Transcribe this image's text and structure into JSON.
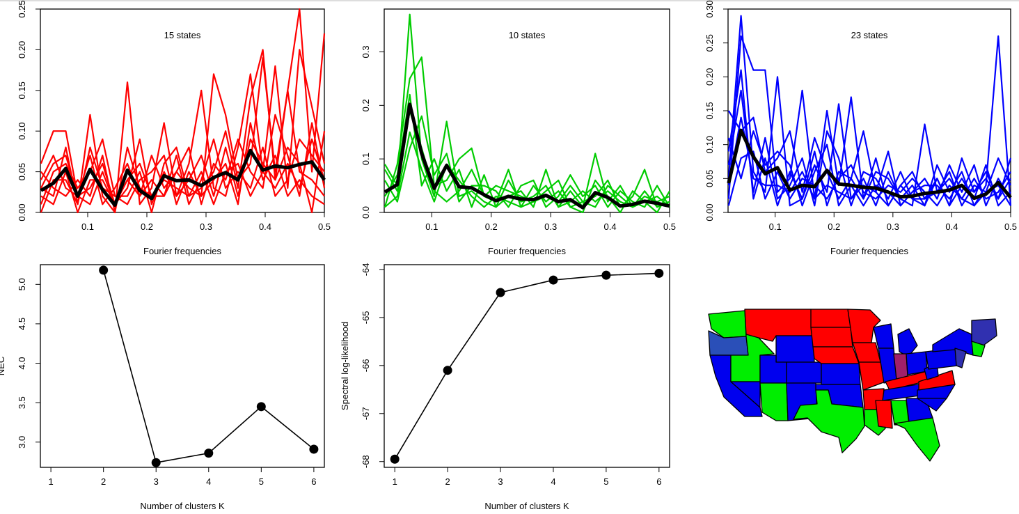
{
  "chart_data": [
    {
      "type": "line",
      "panel": "top-left",
      "annotation": "15 states",
      "xlabel": "Fourier frequencies",
      "ylabel": "",
      "xlim": [
        0.02,
        0.5
      ],
      "ylim": [
        0.0,
        0.25
      ],
      "xticks": [
        "0.1",
        "0.2",
        "0.3",
        "0.4",
        "0.5"
      ],
      "yticks": [
        "0.00",
        "0.05",
        "0.10",
        "0.15",
        "0.20",
        "0.25"
      ],
      "line_color": "#ff0000",
      "mean_color": "#000000",
      "x": [
        0.021,
        0.042,
        0.063,
        0.083,
        0.104,
        0.125,
        0.146,
        0.167,
        0.188,
        0.208,
        0.229,
        0.25,
        0.271,
        0.292,
        0.313,
        0.333,
        0.354,
        0.375,
        0.396,
        0.417,
        0.438,
        0.458,
        0.479,
        0.5
      ],
      "mean": [
        0.027,
        0.036,
        0.054,
        0.02,
        0.053,
        0.028,
        0.009,
        0.052,
        0.027,
        0.017,
        0.045,
        0.039,
        0.04,
        0.033,
        0.043,
        0.049,
        0.04,
        0.076,
        0.052,
        0.057,
        0.055,
        0.059,
        0.062,
        0.04
      ],
      "series": [
        {
          "values": [
            0.06,
            0.1,
            0.1,
            0.02,
            0.03,
            0.06,
            0.01,
            0.04,
            0.02,
            0.04,
            0.02,
            0.05,
            0.03,
            0.02,
            0.17,
            0.12,
            0.04,
            0.06,
            0.19,
            0.05,
            0.15,
            0.25,
            0.05,
            0.22
          ]
        },
        {
          "values": [
            0.03,
            0.02,
            0.08,
            0.01,
            0.12,
            0.02,
            0.0,
            0.16,
            0.01,
            0.03,
            0.11,
            0.02,
            0.06,
            0.15,
            0.03,
            0.02,
            0.08,
            0.17,
            0.05,
            0.18,
            0.03,
            0.2,
            0.13,
            0.06
          ]
        },
        {
          "values": [
            0.01,
            0.05,
            0.06,
            0.03,
            0.05,
            0.09,
            0.02,
            0.02,
            0.05,
            0.0,
            0.06,
            0.08,
            0.02,
            0.03,
            0.05,
            0.1,
            0.03,
            0.14,
            0.2,
            0.04,
            0.08,
            0.06,
            0.0,
            0.1
          ]
        },
        {
          "values": [
            0.04,
            0.07,
            0.03,
            0.02,
            0.07,
            0.01,
            0.03,
            0.06,
            0.02,
            0.07,
            0.03,
            0.05,
            0.08,
            0.01,
            0.06,
            0.04,
            0.09,
            0.05,
            0.03,
            0.12,
            0.07,
            0.02,
            0.11,
            0.03
          ]
        },
        {
          "values": [
            0.02,
            0.01,
            0.05,
            0.0,
            0.04,
            0.04,
            0.01,
            0.03,
            0.09,
            0.01,
            0.05,
            0.02,
            0.04,
            0.07,
            0.02,
            0.08,
            0.02,
            0.09,
            0.06,
            0.04,
            0.15,
            0.05,
            0.04,
            0.02
          ]
        },
        {
          "values": [
            0.05,
            0.03,
            0.02,
            0.04,
            0.02,
            0.07,
            0.0,
            0.08,
            0.03,
            0.02,
            0.02,
            0.07,
            0.01,
            0.04,
            0.09,
            0.03,
            0.05,
            0.03,
            0.08,
            0.02,
            0.04,
            0.09,
            0.07,
            0.05
          ]
        },
        {
          "values": [
            0.0,
            0.04,
            0.04,
            0.01,
            0.08,
            0.03,
            0.02,
            0.01,
            0.04,
            0.05,
            0.07,
            0.01,
            0.05,
            0.02,
            0.04,
            0.06,
            0.01,
            0.11,
            0.04,
            0.07,
            0.02,
            0.04,
            0.02,
            0.01
          ]
        },
        {
          "values": [
            0.03,
            0.06,
            0.07,
            0.02,
            0.01,
            0.05,
            0.01,
            0.04,
            0.06,
            0.02,
            0.04,
            0.03,
            0.02,
            0.05,
            0.01,
            0.05,
            0.06,
            0.02,
            0.05,
            0.03,
            0.06,
            0.03,
            0.09,
            0.04
          ]
        }
      ]
    },
    {
      "type": "line",
      "panel": "top-middle",
      "annotation": "10 states",
      "xlabel": "Fourier frequencies",
      "ylabel": "",
      "xlim": [
        0.02,
        0.5
      ],
      "ylim": [
        0.0,
        0.38
      ],
      "xticks": [
        "0.1",
        "0.2",
        "0.3",
        "0.4",
        "0.5"
      ],
      "yticks": [
        "0.0",
        "0.1",
        "0.2",
        "0.3"
      ],
      "line_color": "#00cc00",
      "mean_color": "#000000",
      "x": [
        0.021,
        0.042,
        0.063,
        0.083,
        0.104,
        0.125,
        0.146,
        0.167,
        0.188,
        0.208,
        0.229,
        0.25,
        0.271,
        0.292,
        0.313,
        0.333,
        0.354,
        0.375,
        0.396,
        0.417,
        0.438,
        0.458,
        0.479,
        0.5
      ],
      "mean": [
        0.038,
        0.052,
        0.202,
        0.11,
        0.045,
        0.088,
        0.048,
        0.046,
        0.033,
        0.022,
        0.03,
        0.025,
        0.024,
        0.032,
        0.02,
        0.024,
        0.009,
        0.037,
        0.028,
        0.012,
        0.015,
        0.021,
        0.017,
        0.012
      ],
      "series": [
        {
          "values": [
            0.09,
            0.05,
            0.37,
            0.1,
            0.03,
            0.17,
            0.03,
            0.04,
            0.02,
            0.01,
            0.06,
            0.02,
            0.03,
            0.05,
            0.01,
            0.04,
            0.01,
            0.11,
            0.02,
            0.05,
            0.01,
            0.02,
            0.0,
            0.04
          ]
        },
        {
          "values": [
            0.01,
            0.09,
            0.25,
            0.29,
            0.05,
            0.06,
            0.1,
            0.12,
            0.03,
            0.02,
            0.08,
            0.01,
            0.02,
            0.04,
            0.06,
            0.01,
            0.02,
            0.03,
            0.06,
            0.01,
            0.03,
            0.08,
            0.01,
            0.02
          ]
        },
        {
          "values": [
            0.06,
            0.02,
            0.12,
            0.18,
            0.07,
            0.11,
            0.02,
            0.05,
            0.05,
            0.04,
            0.01,
            0.05,
            0.06,
            0.01,
            0.03,
            0.07,
            0.03,
            0.05,
            0.01,
            0.04,
            0.02,
            0.01,
            0.05,
            0.01
          ]
        },
        {
          "values": [
            0.03,
            0.07,
            0.22,
            0.05,
            0.1,
            0.04,
            0.08,
            0.01,
            0.07,
            0.01,
            0.03,
            0.04,
            0.01,
            0.08,
            0.01,
            0.02,
            0.04,
            0.02,
            0.04,
            0.02,
            0.01,
            0.03,
            0.02,
            0.03
          ]
        },
        {
          "values": [
            0.01,
            0.03,
            0.15,
            0.08,
            0.02,
            0.09,
            0.06,
            0.03,
            0.01,
            0.03,
            0.02,
            0.01,
            0.05,
            0.02,
            0.04,
            0.01,
            0.0,
            0.06,
            0.03,
            0.0,
            0.04,
            0.02,
            0.03,
            0.01
          ]
        },
        {
          "values": [
            0.08,
            0.04,
            0.19,
            0.12,
            0.04,
            0.02,
            0.04,
            0.08,
            0.03,
            0.05,
            0.04,
            0.03,
            0.02,
            0.03,
            0.02,
            0.05,
            0.02,
            0.01,
            0.05,
            0.03,
            0.01,
            0.04,
            0.01,
            0.02
          ]
        }
      ]
    },
    {
      "type": "line",
      "panel": "top-right",
      "annotation": "23 states",
      "xlabel": "Fourier frequencies",
      "ylabel": "",
      "xlim": [
        0.02,
        0.5
      ],
      "ylim": [
        0.0,
        0.3
      ],
      "xticks": [
        "0.1",
        "0.2",
        "0.3",
        "0.4",
        "0.5"
      ],
      "yticks": [
        "0.00",
        "0.05",
        "0.10",
        "0.15",
        "0.20",
        "0.25",
        "0.30"
      ],
      "line_color": "#0000ff",
      "mean_color": "#000000",
      "x": [
        0.021,
        0.042,
        0.063,
        0.083,
        0.104,
        0.125,
        0.146,
        0.167,
        0.188,
        0.208,
        0.229,
        0.25,
        0.271,
        0.292,
        0.313,
        0.333,
        0.354,
        0.375,
        0.396,
        0.417,
        0.438,
        0.458,
        0.479,
        0.5
      ],
      "mean": [
        0.043,
        0.121,
        0.082,
        0.057,
        0.066,
        0.033,
        0.04,
        0.038,
        0.062,
        0.042,
        0.04,
        0.037,
        0.036,
        0.03,
        0.023,
        0.024,
        0.028,
        0.03,
        0.033,
        0.04,
        0.021,
        0.027,
        0.044,
        0.022
      ],
      "series": [
        {
          "values": [
            0.05,
            0.29,
            0.06,
            0.03,
            0.2,
            0.01,
            0.02,
            0.07,
            0.03,
            0.16,
            0.02,
            0.05,
            0.01,
            0.06,
            0.02,
            0.01,
            0.13,
            0.03,
            0.05,
            0.02,
            0.01,
            0.04,
            0.26,
            0.01
          ]
        },
        {
          "values": [
            0.02,
            0.26,
            0.21,
            0.21,
            0.03,
            0.05,
            0.18,
            0.02,
            0.15,
            0.04,
            0.17,
            0.02,
            0.08,
            0.01,
            0.04,
            0.06,
            0.02,
            0.05,
            0.01,
            0.08,
            0.03,
            0.06,
            0.02,
            0.08
          ]
        },
        {
          "values": [
            0.15,
            0.12,
            0.14,
            0.06,
            0.08,
            0.12,
            0.03,
            0.11,
            0.06,
            0.02,
            0.05,
            0.12,
            0.03,
            0.09,
            0.01,
            0.03,
            0.05,
            0.02,
            0.07,
            0.03,
            0.07,
            0.01,
            0.05,
            0.02
          ]
        },
        {
          "values": [
            0.07,
            0.18,
            0.03,
            0.11,
            0.02,
            0.04,
            0.08,
            0.01,
            0.12,
            0.08,
            0.01,
            0.06,
            0.05,
            0.02,
            0.06,
            0.02,
            0.01,
            0.07,
            0.03,
            0.06,
            0.01,
            0.03,
            0.08,
            0.04
          ]
        },
        {
          "values": [
            0.01,
            0.08,
            0.09,
            0.02,
            0.06,
            0.02,
            0.05,
            0.04,
            0.02,
            0.05,
            0.07,
            0.03,
            0.02,
            0.04,
            0.03,
            0.05,
            0.03,
            0.01,
            0.04,
            0.02,
            0.05,
            0.02,
            0.03,
            0.06
          ]
        },
        {
          "values": [
            0.11,
            0.05,
            0.12,
            0.07,
            0.09,
            0.07,
            0.01,
            0.06,
            0.1,
            0.01,
            0.04,
            0.01,
            0.04,
            0.03,
            0.01,
            0.03,
            0.04,
            0.04,
            0.02,
            0.05,
            0.02,
            0.07,
            0.01,
            0.03
          ]
        },
        {
          "values": [
            0.04,
            0.14,
            0.05,
            0.04,
            0.04,
            0.03,
            0.06,
            0.02,
            0.04,
            0.03,
            0.02,
            0.04,
            0.03,
            0.01,
            0.04,
            0.02,
            0.02,
            0.03,
            0.06,
            0.01,
            0.04,
            0.03,
            0.04,
            0.01
          ]
        },
        {
          "values": [
            0.09,
            0.21,
            0.02,
            0.08,
            0.01,
            0.06,
            0.02,
            0.09,
            0.01,
            0.06,
            0.05,
            0.02,
            0.06,
            0.05,
            0.02,
            0.04,
            0.01,
            0.05,
            0.01,
            0.04,
            0.03,
            0.05,
            0.02,
            0.05
          ]
        }
      ]
    },
    {
      "type": "scatter",
      "panel": "bottom-left",
      "connected": true,
      "xlabel": "Number of clusters K",
      "ylabel": "NEC",
      "xlim": [
        0.8,
        6.2
      ],
      "ylim": [
        2.68,
        5.25
      ],
      "xticks": [
        "1",
        "2",
        "3",
        "4",
        "5",
        "6"
      ],
      "yticks": [
        "3.0",
        "3.5",
        "4.0",
        "4.5",
        "5.0"
      ],
      "x": [
        2,
        3,
        4,
        5,
        6
      ],
      "y": [
        5.18,
        2.74,
        2.86,
        3.45,
        2.91
      ]
    },
    {
      "type": "scatter",
      "panel": "bottom-middle",
      "connected": true,
      "xlabel": "Number of clusters K",
      "ylabel": "Spectral log-likelihood",
      "xlim": [
        0.8,
        6.2
      ],
      "ylim": [
        -68.12,
        -63.9
      ],
      "xticks": [
        "1",
        "2",
        "3",
        "4",
        "5",
        "6"
      ],
      "yticks": [
        "-68",
        "-67",
        "-66",
        "-65",
        "-64"
      ],
      "x": [
        1,
        2,
        3,
        4,
        5,
        6
      ],
      "y": [
        -67.95,
        -66.1,
        -64.48,
        -64.22,
        -64.12,
        -64.08
      ]
    }
  ],
  "map": {
    "colors": {
      "red": "#ff0000",
      "green": "#00ee00",
      "blue": "#0000ee",
      "purple": "#a0206a",
      "dark_blue": "#3030b0",
      "steel_blue": "#2a4fb8"
    },
    "regions": [
      {
        "name": "washington",
        "color": "green"
      },
      {
        "name": "oregon",
        "color": "steel_blue"
      },
      {
        "name": "california",
        "color": "blue"
      },
      {
        "name": "idaho",
        "color": "green"
      },
      {
        "name": "nevada",
        "color": "blue"
      },
      {
        "name": "montana",
        "color": "red"
      },
      {
        "name": "wyoming",
        "color": "blue"
      },
      {
        "name": "utah",
        "color": "blue"
      },
      {
        "name": "arizona",
        "color": "green"
      },
      {
        "name": "colorado",
        "color": "blue"
      },
      {
        "name": "new-mexico",
        "color": "blue"
      },
      {
        "name": "north-dakota",
        "color": "red"
      },
      {
        "name": "south-dakota",
        "color": "red"
      },
      {
        "name": "nebraska",
        "color": "red"
      },
      {
        "name": "kansas",
        "color": "blue"
      },
      {
        "name": "oklahoma",
        "color": "blue"
      },
      {
        "name": "texas",
        "color": "green"
      },
      {
        "name": "minnesota",
        "color": "red"
      },
      {
        "name": "iowa",
        "color": "red"
      },
      {
        "name": "missouri",
        "color": "red"
      },
      {
        "name": "arkansas",
        "color": "red"
      },
      {
        "name": "louisiana",
        "color": "green"
      },
      {
        "name": "wisconsin",
        "color": "blue"
      },
      {
        "name": "illinois",
        "color": "blue"
      },
      {
        "name": "michigan",
        "color": "blue"
      },
      {
        "name": "indiana",
        "color": "purple"
      },
      {
        "name": "ohio",
        "color": "blue"
      },
      {
        "name": "kentucky",
        "color": "red"
      },
      {
        "name": "tennessee",
        "color": "blue"
      },
      {
        "name": "mississippi",
        "color": "red"
      },
      {
        "name": "alabama",
        "color": "green"
      },
      {
        "name": "georgia",
        "color": "blue"
      },
      {
        "name": "florida",
        "color": "green"
      },
      {
        "name": "south-carolina",
        "color": "blue"
      },
      {
        "name": "north-carolina",
        "color": "blue"
      },
      {
        "name": "virginia",
        "color": "red"
      },
      {
        "name": "west-virginia",
        "color": "blue"
      },
      {
        "name": "pennsylvania",
        "color": "blue"
      },
      {
        "name": "new-york",
        "color": "blue"
      },
      {
        "name": "new-jersey",
        "color": "dark_blue"
      },
      {
        "name": "new-england-north",
        "color": "dark_blue"
      },
      {
        "name": "new-england-south",
        "color": "green"
      }
    ]
  }
}
